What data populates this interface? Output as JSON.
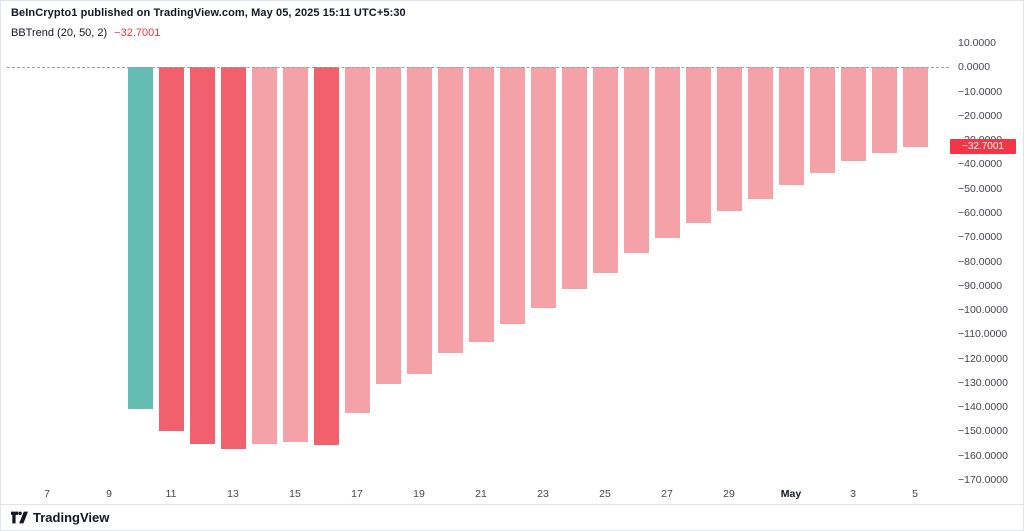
{
  "header": {
    "published_line": "BeInCrypto1 published on TradingView.com, May 05, 2025 15:11 UTC+5:30",
    "indicator_label": "BBTrend (20, 50, 2)",
    "indicator_value": "−32.7001"
  },
  "colors": {
    "teal": "#63bdb3",
    "red_strong": "#f1606d",
    "red_weak": "#f5a1a8",
    "value_red": "#f23645",
    "tag_bg": "#f23645",
    "axis_text": "#42464e",
    "dashed_line": "#9aa0a9"
  },
  "chart_data": {
    "type": "bar",
    "title": "BBTrend (20, 50, 2)",
    "x": [
      "Apr 10",
      "Apr 11",
      "Apr 12",
      "Apr 13",
      "Apr 14",
      "Apr 15",
      "Apr 16",
      "Apr 17",
      "Apr 18",
      "Apr 19",
      "Apr 20",
      "Apr 21",
      "Apr 22",
      "Apr 23",
      "Apr 24",
      "Apr 25",
      "Apr 26",
      "Apr 27",
      "Apr 28",
      "Apr 29",
      "Apr 30",
      "May 1",
      "May 2",
      "May 3",
      "May 4",
      "May 5"
    ],
    "values": [
      -140.7,
      -149.9,
      -155.2,
      -157.3,
      -155.0,
      -154.3,
      -155.4,
      -142.3,
      -130.5,
      -126.2,
      -117.8,
      -113.1,
      -105.8,
      -99.2,
      -91.4,
      -84.8,
      -76.6,
      -70.4,
      -64.2,
      -59.3,
      -54.3,
      -48.7,
      -43.6,
      -38.8,
      -35.4,
      -32.7
    ],
    "bar_colors": [
      "teal",
      "strong",
      "strong",
      "strong",
      "weak",
      "weak",
      "strong",
      "weak",
      "weak",
      "weak",
      "weak",
      "weak",
      "weak",
      "weak",
      "weak",
      "weak",
      "weak",
      "weak",
      "weak",
      "weak",
      "weak",
      "weak",
      "weak",
      "weak",
      "weak",
      "weak"
    ],
    "last_value": -32.7001,
    "last_value_tag": "−32.7001",
    "ylim": [
      -170,
      10
    ],
    "grid": false,
    "zero_line": 0,
    "y_ticks": [
      {
        "value": 10,
        "label": "10.0000"
      },
      {
        "value": 0,
        "label": "0.0000"
      },
      {
        "value": -10,
        "label": "−10.0000"
      },
      {
        "value": -20,
        "label": "−20.0000"
      },
      {
        "value": -30,
        "label": "−30.0000"
      },
      {
        "value": -40,
        "label": "−40.0000"
      },
      {
        "value": -50,
        "label": "−50.0000"
      },
      {
        "value": -60,
        "label": "−60.0000"
      },
      {
        "value": -70,
        "label": "−70.0000"
      },
      {
        "value": -80,
        "label": "−80.0000"
      },
      {
        "value": -90,
        "label": "−90.0000"
      },
      {
        "value": -100,
        "label": "−100.0000"
      },
      {
        "value": -110,
        "label": "−110.0000"
      },
      {
        "value": -120,
        "label": "−120.0000"
      },
      {
        "value": -130,
        "label": "−130.0000"
      },
      {
        "value": -140,
        "label": "−140.0000"
      },
      {
        "value": -150,
        "label": "−150.0000"
      },
      {
        "value": -160,
        "label": "−160.0000"
      },
      {
        "value": -170,
        "label": "−170.0000"
      }
    ],
    "x_tick_labels": [
      "7",
      "9",
      "11",
      "13",
      "15",
      "17",
      "19",
      "21",
      "23",
      "25",
      "27",
      "29",
      "May",
      "3",
      "5"
    ]
  },
  "footer": {
    "brand": "TradingView"
  }
}
